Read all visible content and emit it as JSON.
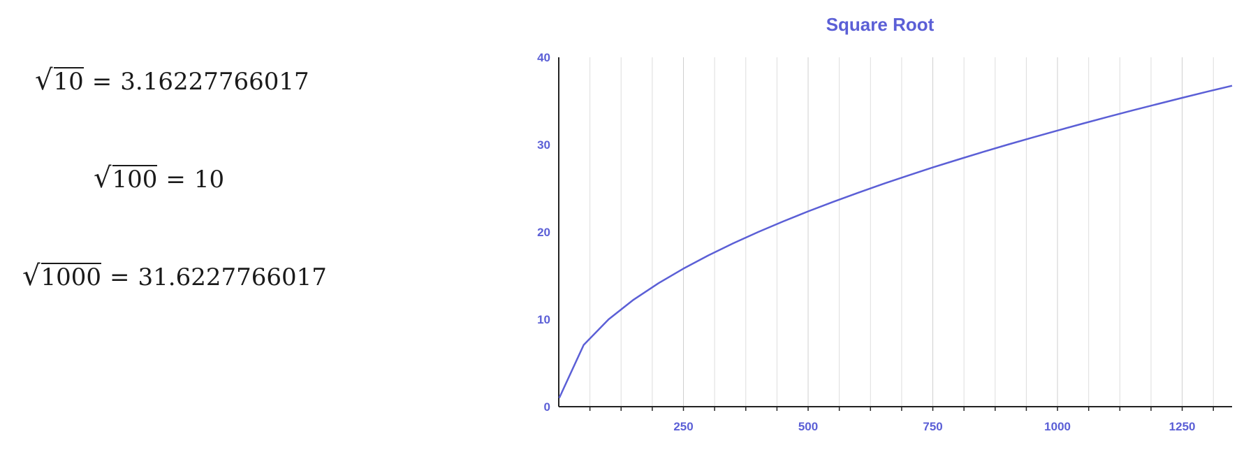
{
  "equations": [
    {
      "radicand": "10",
      "result": "3.16227766017"
    },
    {
      "radicand": "100",
      "result": "10"
    },
    {
      "radicand": "1000",
      "result": "31.6227766017"
    }
  ],
  "symbols": {
    "radical": "√",
    "equals": "="
  },
  "colors": {
    "accent": "#5b5fd6",
    "axis": "#222222",
    "grid": "#dddddd"
  },
  "chart_data": {
    "type": "line",
    "title": "Square Root",
    "xlabel": "",
    "ylabel": "",
    "xlim": [
      0,
      1350
    ],
    "ylim": [
      0,
      40
    ],
    "x_ticks": [
      250,
      500,
      750,
      1000,
      1250
    ],
    "y_ticks": [
      0,
      10,
      20,
      30,
      40
    ],
    "grid": "vertical",
    "series": [
      {
        "values": [
          {
            "x": 1,
            "y": 1
          },
          {
            "x": 50,
            "y": 7.07
          },
          {
            "x": 100,
            "y": 10
          },
          {
            "x": 150,
            "y": 12.25
          },
          {
            "x": 200,
            "y": 14.14
          },
          {
            "x": 250,
            "y": 15.81
          },
          {
            "x": 300,
            "y": 17.32
          },
          {
            "x": 350,
            "y": 18.71
          },
          {
            "x": 400,
            "y": 20
          },
          {
            "x": 450,
            "y": 21.21
          },
          {
            "x": 500,
            "y": 22.36
          },
          {
            "x": 550,
            "y": 23.45
          },
          {
            "x": 600,
            "y": 24.49
          },
          {
            "x": 650,
            "y": 25.5
          },
          {
            "x": 700,
            "y": 26.46
          },
          {
            "x": 750,
            "y": 27.39
          },
          {
            "x": 800,
            "y": 28.28
          },
          {
            "x": 850,
            "y": 29.15
          },
          {
            "x": 900,
            "y": 30
          },
          {
            "x": 950,
            "y": 30.82
          },
          {
            "x": 1000,
            "y": 31.62
          },
          {
            "x": 1050,
            "y": 32.4
          },
          {
            "x": 1100,
            "y": 33.17
          },
          {
            "x": 1150,
            "y": 33.91
          },
          {
            "x": 1200,
            "y": 34.64
          },
          {
            "x": 1250,
            "y": 35.36
          },
          {
            "x": 1300,
            "y": 36.06
          },
          {
            "x": 1350,
            "y": 36.74
          }
        ]
      }
    ]
  }
}
